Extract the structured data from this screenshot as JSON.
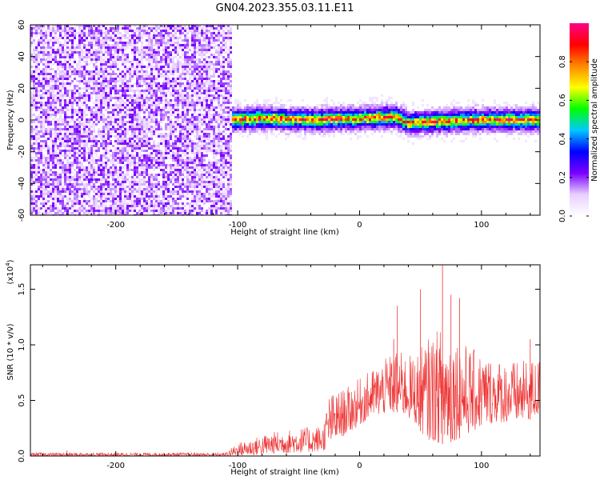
{
  "title": "GN04.2023.355.03.11.E11",
  "chart_data": [
    {
      "type": "heatmap",
      "xlabel": "Height of straight line (km)",
      "ylabel": "Frequency (Hz)",
      "xlim": [
        -270,
        148
      ],
      "ylim": [
        -60,
        60
      ],
      "xticks": [
        -200,
        -100,
        0,
        100
      ],
      "yticks": [
        -60,
        -40,
        -20,
        0,
        20,
        40,
        60
      ],
      "xtick_labels": [
        "-200",
        "-100",
        "0",
        "100"
      ],
      "ytick_labels": [
        "-60",
        "-40",
        "-20",
        "0",
        "20",
        "40",
        "60"
      ],
      "grid": false,
      "noise_region_x": [
        -270,
        -104
      ],
      "band_center_hz": [
        {
          "x": -110,
          "y": 0
        },
        {
          "x": -80,
          "y": 1
        },
        {
          "x": -40,
          "y": 0
        },
        {
          "x": 0,
          "y": 1
        },
        {
          "x": 30,
          "y": 2
        },
        {
          "x": 40,
          "y": -2
        },
        {
          "x": 60,
          "y": -1
        },
        {
          "x": 100,
          "y": 0
        },
        {
          "x": 148,
          "y": 0
        }
      ],
      "band_halfwidth_hz": 7,
      "colorbar": {
        "label": "Normalized spectral amplitude",
        "range": [
          0,
          1
        ],
        "ticks": [
          0.0,
          0.2,
          0.4,
          0.6,
          0.8
        ],
        "tick_labels": [
          "0.0",
          "0.2",
          "0.4",
          "0.6",
          "0.8"
        ],
        "colors": [
          "#ffffff",
          "#e8d0ff",
          "#7a00ff",
          "#0000ff",
          "#00c8ff",
          "#00ff00",
          "#ffff00",
          "#ff8800",
          "#ff0000",
          "#ff0088"
        ]
      }
    },
    {
      "type": "line",
      "xlabel": "Height of straight line (km)",
      "ylabel": "SNR (10 * v/v)",
      "y_multiplier": "(x10",
      "y_multiplier_exp": "4",
      "y_multiplier_close": ")",
      "xlim": [
        -270,
        148
      ],
      "ylim": [
        0,
        1.72
      ],
      "xticks": [
        -200,
        -100,
        0,
        100
      ],
      "yticks": [
        0.0,
        0.5,
        1.0,
        1.5
      ],
      "xtick_labels": [
        "-200",
        "-100",
        "0",
        "100"
      ],
      "ytick_labels": [
        "0.0",
        "0.5",
        "1.0",
        "1.5"
      ],
      "grid": false,
      "color": "#ee3333",
      "envelope": [
        {
          "x": -270,
          "low": 0.0,
          "high": 0.03
        },
        {
          "x": -110,
          "low": 0.0,
          "high": 0.03
        },
        {
          "x": -100,
          "low": 0.0,
          "high": 0.12
        },
        {
          "x": -70,
          "low": 0.02,
          "high": 0.22
        },
        {
          "x": -30,
          "low": 0.04,
          "high": 0.28
        },
        {
          "x": -25,
          "low": 0.1,
          "high": 0.55
        },
        {
          "x": -10,
          "low": 0.2,
          "high": 0.62
        },
        {
          "x": 10,
          "low": 0.35,
          "high": 0.78
        },
        {
          "x": 30,
          "low": 0.4,
          "high": 0.95
        },
        {
          "x": 45,
          "low": 0.3,
          "high": 0.9
        },
        {
          "x": 55,
          "low": 0.15,
          "high": 1.05
        },
        {
          "x": 70,
          "low": 0.1,
          "high": 1.2
        },
        {
          "x": 90,
          "low": 0.2,
          "high": 0.98
        },
        {
          "x": 110,
          "low": 0.3,
          "high": 0.88
        },
        {
          "x": 130,
          "low": 0.3,
          "high": 0.85
        },
        {
          "x": 148,
          "low": 0.35,
          "high": 0.88
        }
      ],
      "peaks": [
        {
          "x": 28,
          "y": 1.05
        },
        {
          "x": 31,
          "y": 1.35
        },
        {
          "x": 50,
          "y": 1.5
        },
        {
          "x": 68,
          "y": 1.72
        },
        {
          "x": 75,
          "y": 1.45
        },
        {
          "x": 82,
          "y": 1.42
        },
        {
          "x": 140,
          "y": 1.05
        },
        {
          "x": -240,
          "y": 0.05
        }
      ]
    }
  ]
}
